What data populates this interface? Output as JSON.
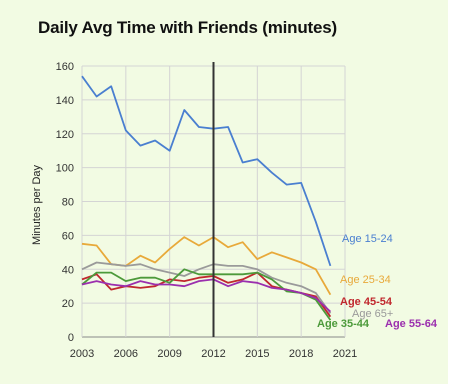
{
  "chart_data": {
    "type": "line",
    "title": "Daily Avg Time with Friends (minutes)",
    "xlabel": "",
    "ylabel": "Minutes per Day",
    "xlim": [
      2003,
      2021
    ],
    "ylim": [
      0,
      160
    ],
    "x_ticks": [
      "2003",
      "2006",
      "2009",
      "2012",
      "2015",
      "2018",
      "2021"
    ],
    "y_ticks": [
      "0",
      "20",
      "40",
      "60",
      "80",
      "100",
      "120",
      "140",
      "160"
    ],
    "grid": true,
    "vertical_marker_x": 2012,
    "x": [
      2003,
      2004,
      2005,
      2006,
      2007,
      2008,
      2009,
      2010,
      2011,
      2012,
      2013,
      2014,
      2015,
      2016,
      2017,
      2018,
      2019,
      2020
    ],
    "series": [
      {
        "name": "Age 15-24",
        "color": "#4a7fd0",
        "values": [
          154,
          142,
          148,
          122,
          113,
          116,
          110,
          134,
          124,
          123,
          124,
          103,
          105,
          97,
          90,
          91,
          68,
          42
        ]
      },
      {
        "name": "Age 25-34",
        "color": "#e8a93a",
        "values": [
          55,
          54,
          43,
          42,
          48,
          44,
          52,
          59,
          54,
          59,
          53,
          56,
          46,
          50,
          47,
          44,
          40,
          25
        ]
      },
      {
        "name": "Age 65+",
        "color": "#9a9a9a",
        "values": [
          40,
          44,
          43,
          42,
          43,
          40,
          38,
          36,
          40,
          43,
          42,
          42,
          40,
          35,
          32,
          30,
          26,
          14
        ]
      },
      {
        "name": "Age 45-54",
        "color": "#c0282e",
        "values": [
          34,
          37,
          28,
          30,
          29,
          30,
          34,
          33,
          35,
          36,
          32,
          34,
          38,
          30,
          28,
          26,
          24,
          12
        ]
      },
      {
        "name": "Age 35-44",
        "color": "#4c9a3a",
        "values": [
          31,
          38,
          38,
          33,
          35,
          35,
          32,
          40,
          37,
          37,
          37,
          37,
          38,
          34,
          27,
          26,
          22,
          10
        ]
      },
      {
        "name": "Age 55-64",
        "color": "#9b2fae",
        "values": [
          31,
          33,
          31,
          30,
          33,
          31,
          31,
          30,
          33,
          34,
          30,
          33,
          32,
          29,
          28,
          26,
          23,
          15
        ]
      }
    ]
  }
}
